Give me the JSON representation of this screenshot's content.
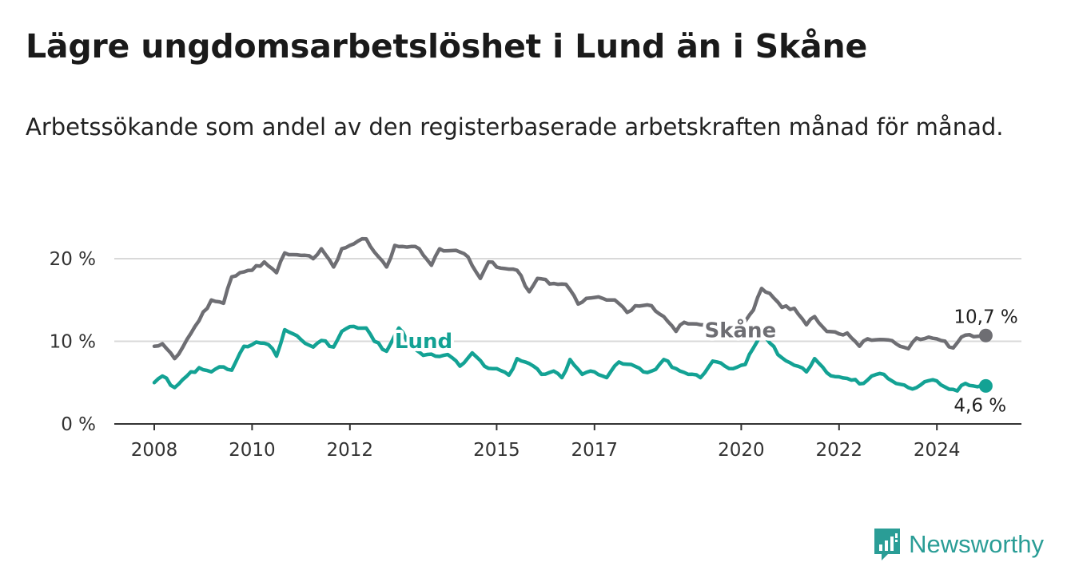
{
  "header": {
    "title": "Lägre ungdomsarbetslöshet i Lund än i Skåne",
    "subtitle": "Arbetssökande som andel av den registerbaserade arbetskraften månad för månad."
  },
  "brand": {
    "name": "Newsworthy",
    "icon": "newsworthy-chart-icon",
    "color": "#2a9d96"
  },
  "chart_data": {
    "type": "line",
    "x_start": "2008-01",
    "x_step": "month",
    "xlim": [
      "2008-01",
      "2025-06"
    ],
    "ylim": [
      0,
      23
    ],
    "grid": true,
    "y_ticks": [
      {
        "value": 0,
        "label": "0 %"
      },
      {
        "value": 10,
        "label": "10 %"
      },
      {
        "value": 20,
        "label": "20 %"
      }
    ],
    "x_ticks": [
      {
        "value": "2008-01",
        "label": "2008"
      },
      {
        "value": "2010-01",
        "label": "2010"
      },
      {
        "value": "2012-01",
        "label": "2012"
      },
      {
        "value": "2015-01",
        "label": "2015"
      },
      {
        "value": "2017-01",
        "label": "2017"
      },
      {
        "value": "2020-01",
        "label": "2020"
      },
      {
        "value": "2022-01",
        "label": "2022"
      },
      {
        "value": "2024-01",
        "label": "2024"
      }
    ],
    "series": [
      {
        "name": "Skåne",
        "color": "#6e6e73",
        "label_at": "2019-04",
        "end_label": "10,7 %",
        "anchors": [
          [
            "2008-01",
            9.4
          ],
          [
            "2008-03",
            9.7
          ],
          [
            "2008-06",
            7.9
          ],
          [
            "2008-09",
            10.2
          ],
          [
            "2008-12",
            12.5
          ],
          [
            "2009-03",
            15.0
          ],
          [
            "2009-06",
            14.6
          ],
          [
            "2009-08",
            17.8
          ],
          [
            "2009-10",
            18.3
          ],
          [
            "2010-01",
            18.6
          ],
          [
            "2010-04",
            19.6
          ],
          [
            "2010-07",
            18.3
          ],
          [
            "2010-09",
            20.7
          ],
          [
            "2011-01",
            20.4
          ],
          [
            "2011-04",
            20.0
          ],
          [
            "2011-06",
            21.2
          ],
          [
            "2011-09",
            19.0
          ],
          [
            "2011-11",
            21.2
          ],
          [
            "2012-02",
            21.8
          ],
          [
            "2012-05",
            22.4
          ],
          [
            "2012-07",
            20.8
          ],
          [
            "2012-10",
            19.0
          ],
          [
            "2012-12",
            21.6
          ],
          [
            "2013-03",
            21.4
          ],
          [
            "2013-06",
            21.2
          ],
          [
            "2013-09",
            19.2
          ],
          [
            "2013-11",
            21.2
          ],
          [
            "2014-03",
            21.0
          ],
          [
            "2014-06",
            20.2
          ],
          [
            "2014-09",
            17.6
          ],
          [
            "2014-11",
            19.6
          ],
          [
            "2015-03",
            18.8
          ],
          [
            "2015-06",
            18.6
          ],
          [
            "2015-09",
            16.0
          ],
          [
            "2015-11",
            17.6
          ],
          [
            "2016-03",
            17.0
          ],
          [
            "2016-06",
            16.9
          ],
          [
            "2016-09",
            14.5
          ],
          [
            "2016-11",
            15.2
          ],
          [
            "2017-03",
            15.2
          ],
          [
            "2017-06",
            15.0
          ],
          [
            "2017-09",
            13.5
          ],
          [
            "2017-11",
            14.3
          ],
          [
            "2018-03",
            14.3
          ],
          [
            "2018-06",
            13.0
          ],
          [
            "2018-09",
            11.2
          ],
          [
            "2018-11",
            12.3
          ],
          [
            "2019-03",
            12.0
          ],
          [
            "2019-06",
            11.4
          ],
          [
            "2019-09",
            10.7
          ],
          [
            "2019-11",
            12.0
          ],
          [
            "2020-01",
            11.8
          ],
          [
            "2020-04",
            13.8
          ],
          [
            "2020-06",
            16.4
          ],
          [
            "2020-08",
            15.8
          ],
          [
            "2020-11",
            14.1
          ],
          [
            "2021-02",
            14.0
          ],
          [
            "2021-05",
            12.0
          ],
          [
            "2021-07",
            13.0
          ],
          [
            "2021-10",
            11.2
          ],
          [
            "2022-01",
            10.9
          ],
          [
            "2022-03",
            11.0
          ],
          [
            "2022-06",
            9.4
          ],
          [
            "2022-08",
            10.3
          ],
          [
            "2022-12",
            10.2
          ],
          [
            "2023-03",
            9.7
          ],
          [
            "2023-06",
            9.1
          ],
          [
            "2023-08",
            10.4
          ],
          [
            "2023-11",
            10.5
          ],
          [
            "2024-02",
            10.1
          ],
          [
            "2024-05",
            9.2
          ],
          [
            "2024-07",
            10.5
          ],
          [
            "2024-09",
            10.8
          ],
          [
            "2025-01",
            10.7
          ]
        ]
      },
      {
        "name": "Lund",
        "color": "#13a294",
        "label_at": "2012-12",
        "end_label": "4,6 %",
        "anchors": [
          [
            "2008-01",
            5.0
          ],
          [
            "2008-03",
            5.8
          ],
          [
            "2008-06",
            4.4
          ],
          [
            "2008-09",
            5.8
          ],
          [
            "2008-12",
            6.8
          ],
          [
            "2009-03",
            6.3
          ],
          [
            "2009-06",
            6.9
          ],
          [
            "2009-08",
            6.5
          ],
          [
            "2009-11",
            9.4
          ],
          [
            "2010-02",
            9.9
          ],
          [
            "2010-05",
            9.6
          ],
          [
            "2010-07",
            8.2
          ],
          [
            "2010-09",
            11.4
          ],
          [
            "2011-01",
            10.2
          ],
          [
            "2011-04",
            9.3
          ],
          [
            "2011-06",
            10.1
          ],
          [
            "2011-09",
            9.3
          ],
          [
            "2011-11",
            11.2
          ],
          [
            "2012-02",
            11.8
          ],
          [
            "2012-05",
            11.6
          ],
          [
            "2012-07",
            10.0
          ],
          [
            "2012-10",
            8.8
          ],
          [
            "2013-01",
            11.6
          ],
          [
            "2013-04",
            9.5
          ],
          [
            "2013-07",
            8.3
          ],
          [
            "2013-10",
            8.2
          ],
          [
            "2014-01",
            8.4
          ],
          [
            "2014-04",
            7.0
          ],
          [
            "2014-07",
            8.6
          ],
          [
            "2014-10",
            7.0
          ],
          [
            "2015-01",
            6.7
          ],
          [
            "2015-04",
            5.9
          ],
          [
            "2015-06",
            7.9
          ],
          [
            "2015-09",
            7.3
          ],
          [
            "2015-12",
            6.0
          ],
          [
            "2016-03",
            6.4
          ],
          [
            "2016-05",
            5.6
          ],
          [
            "2016-07",
            7.8
          ],
          [
            "2016-10",
            6.0
          ],
          [
            "2017-01",
            6.3
          ],
          [
            "2017-04",
            5.6
          ],
          [
            "2017-07",
            7.5
          ],
          [
            "2017-10",
            7.2
          ],
          [
            "2018-01",
            6.3
          ],
          [
            "2018-04",
            6.6
          ],
          [
            "2018-06",
            7.8
          ],
          [
            "2018-09",
            6.7
          ],
          [
            "2018-12",
            6.0
          ],
          [
            "2019-03",
            5.6
          ],
          [
            "2019-06",
            7.6
          ],
          [
            "2019-09",
            7.0
          ],
          [
            "2019-11",
            6.7
          ],
          [
            "2020-02",
            7.2
          ],
          [
            "2020-04",
            9.2
          ],
          [
            "2020-06",
            11.1
          ],
          [
            "2020-08",
            9.8
          ],
          [
            "2020-11",
            8.0
          ],
          [
            "2021-02",
            7.1
          ],
          [
            "2021-05",
            6.3
          ],
          [
            "2021-07",
            7.9
          ],
          [
            "2021-10",
            6.2
          ],
          [
            "2022-01",
            5.7
          ],
          [
            "2022-04",
            5.3
          ],
          [
            "2022-07",
            4.9
          ],
          [
            "2022-09",
            5.8
          ],
          [
            "2022-12",
            6.0
          ],
          [
            "2023-03",
            4.9
          ],
          [
            "2023-06",
            4.4
          ],
          [
            "2023-08",
            4.4
          ],
          [
            "2023-10",
            5.1
          ],
          [
            "2024-01",
            5.2
          ],
          [
            "2024-04",
            4.2
          ],
          [
            "2024-06",
            4.0
          ],
          [
            "2024-08",
            4.9
          ],
          [
            "2024-11",
            4.5
          ],
          [
            "2025-01",
            4.6
          ]
        ]
      }
    ]
  }
}
